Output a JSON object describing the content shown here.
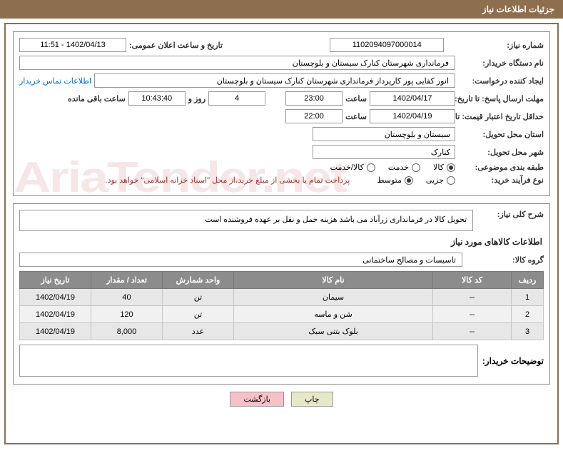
{
  "header": {
    "title": "جزئیات اطلاعات نیاز"
  },
  "top": {
    "need_number_label": "شماره نیاز:",
    "need_number": "1102094097000014",
    "announce_label": "تاریخ و ساعت اعلان عمومی:",
    "announce_value": "1402/04/13 - 11:51",
    "buyer_org_label": "نام دستگاه خریدار:",
    "buyer_org": "فرمانداری شهرستان کنارک سیستان و بلوچستان",
    "requester_label": "ایجاد کننده درخواست:",
    "requester": "انور کفایی پور کارپرداز فرمانداری شهرستان کنارک سیستان و بلوچستان",
    "contact_link": "اطلاعات تماس خریدار",
    "reply_deadline_label": "مهلت ارسال پاسخ: تا تاریخ:",
    "reply_date": "1402/04/17",
    "time_label": "ساعت",
    "reply_time": "23:00",
    "days_count": "4",
    "days_and_label": "روز و",
    "countdown": "10:43:40",
    "remaining_label": "ساعت باقی مانده",
    "price_validity_label": "حداقل تاریخ اعتبار قیمت: تا تاریخ:",
    "price_date": "1402/04/19",
    "price_time": "22:00",
    "delivery_province_label": "استان محل تحویل:",
    "delivery_province": "سیستان و بلوچستان",
    "delivery_city_label": "شهر محل تحویل:",
    "delivery_city": "کنارک",
    "category_label": "طبقه بندی موضوعی:",
    "category_options": {
      "goods": "کالا",
      "service": "خدمت",
      "goods_service": "کالا/خدمت"
    },
    "category_selected": "goods",
    "process_label": "نوع فرآیند خرید:",
    "process_options": {
      "minor": "جزیی",
      "medium": "متوسط"
    },
    "process_selected": "medium",
    "payment_note": "پرداخت تمام یا بخشی از مبلغ خرید،از محل \"اسناد خزانه اسلامی\" خواهد بود."
  },
  "desc": {
    "label": "شرح کلی نیاز:",
    "text": "تحویل کالا در فرمانداری زرآباد می باشد هزینه حمل و نقل بر عهده فروشنده است"
  },
  "goods_section": {
    "title": "اطلاعات کالاهای مورد نیاز",
    "group_label": "گروه کالا:",
    "group_value": "تاسیسات و مصالح ساختمانی"
  },
  "table": {
    "headers": {
      "row": "ردیف",
      "code": "کد کالا",
      "name": "نام کالا",
      "unit": "واحد شمارش",
      "qty": "تعداد / مقدار",
      "date": "تاریخ نیاز"
    },
    "rows": [
      {
        "n": "1",
        "code": "--",
        "name": "سیمان",
        "unit": "تن",
        "qty": "40",
        "date": "1402/04/19"
      },
      {
        "n": "2",
        "code": "--",
        "name": "شن و ماسه",
        "unit": "تن",
        "qty": "120",
        "date": "1402/04/19"
      },
      {
        "n": "3",
        "code": "--",
        "name": "بلوک بتنی سبک",
        "unit": "عدد",
        "qty": "8,000",
        "date": "1402/04/19"
      }
    ]
  },
  "notes": {
    "label": "توضیحات خریدار:",
    "text": ""
  },
  "buttons": {
    "print": "چاپ",
    "back": "بازگشت"
  },
  "colors": {
    "header_bg": "#8d6e4f",
    "border": "#8d6e4f",
    "th_bg": "#8c8c8c",
    "td_bg": "#e7e7e7",
    "btn_back_bg": "#f5c0c8",
    "note_color": "#a03030"
  }
}
